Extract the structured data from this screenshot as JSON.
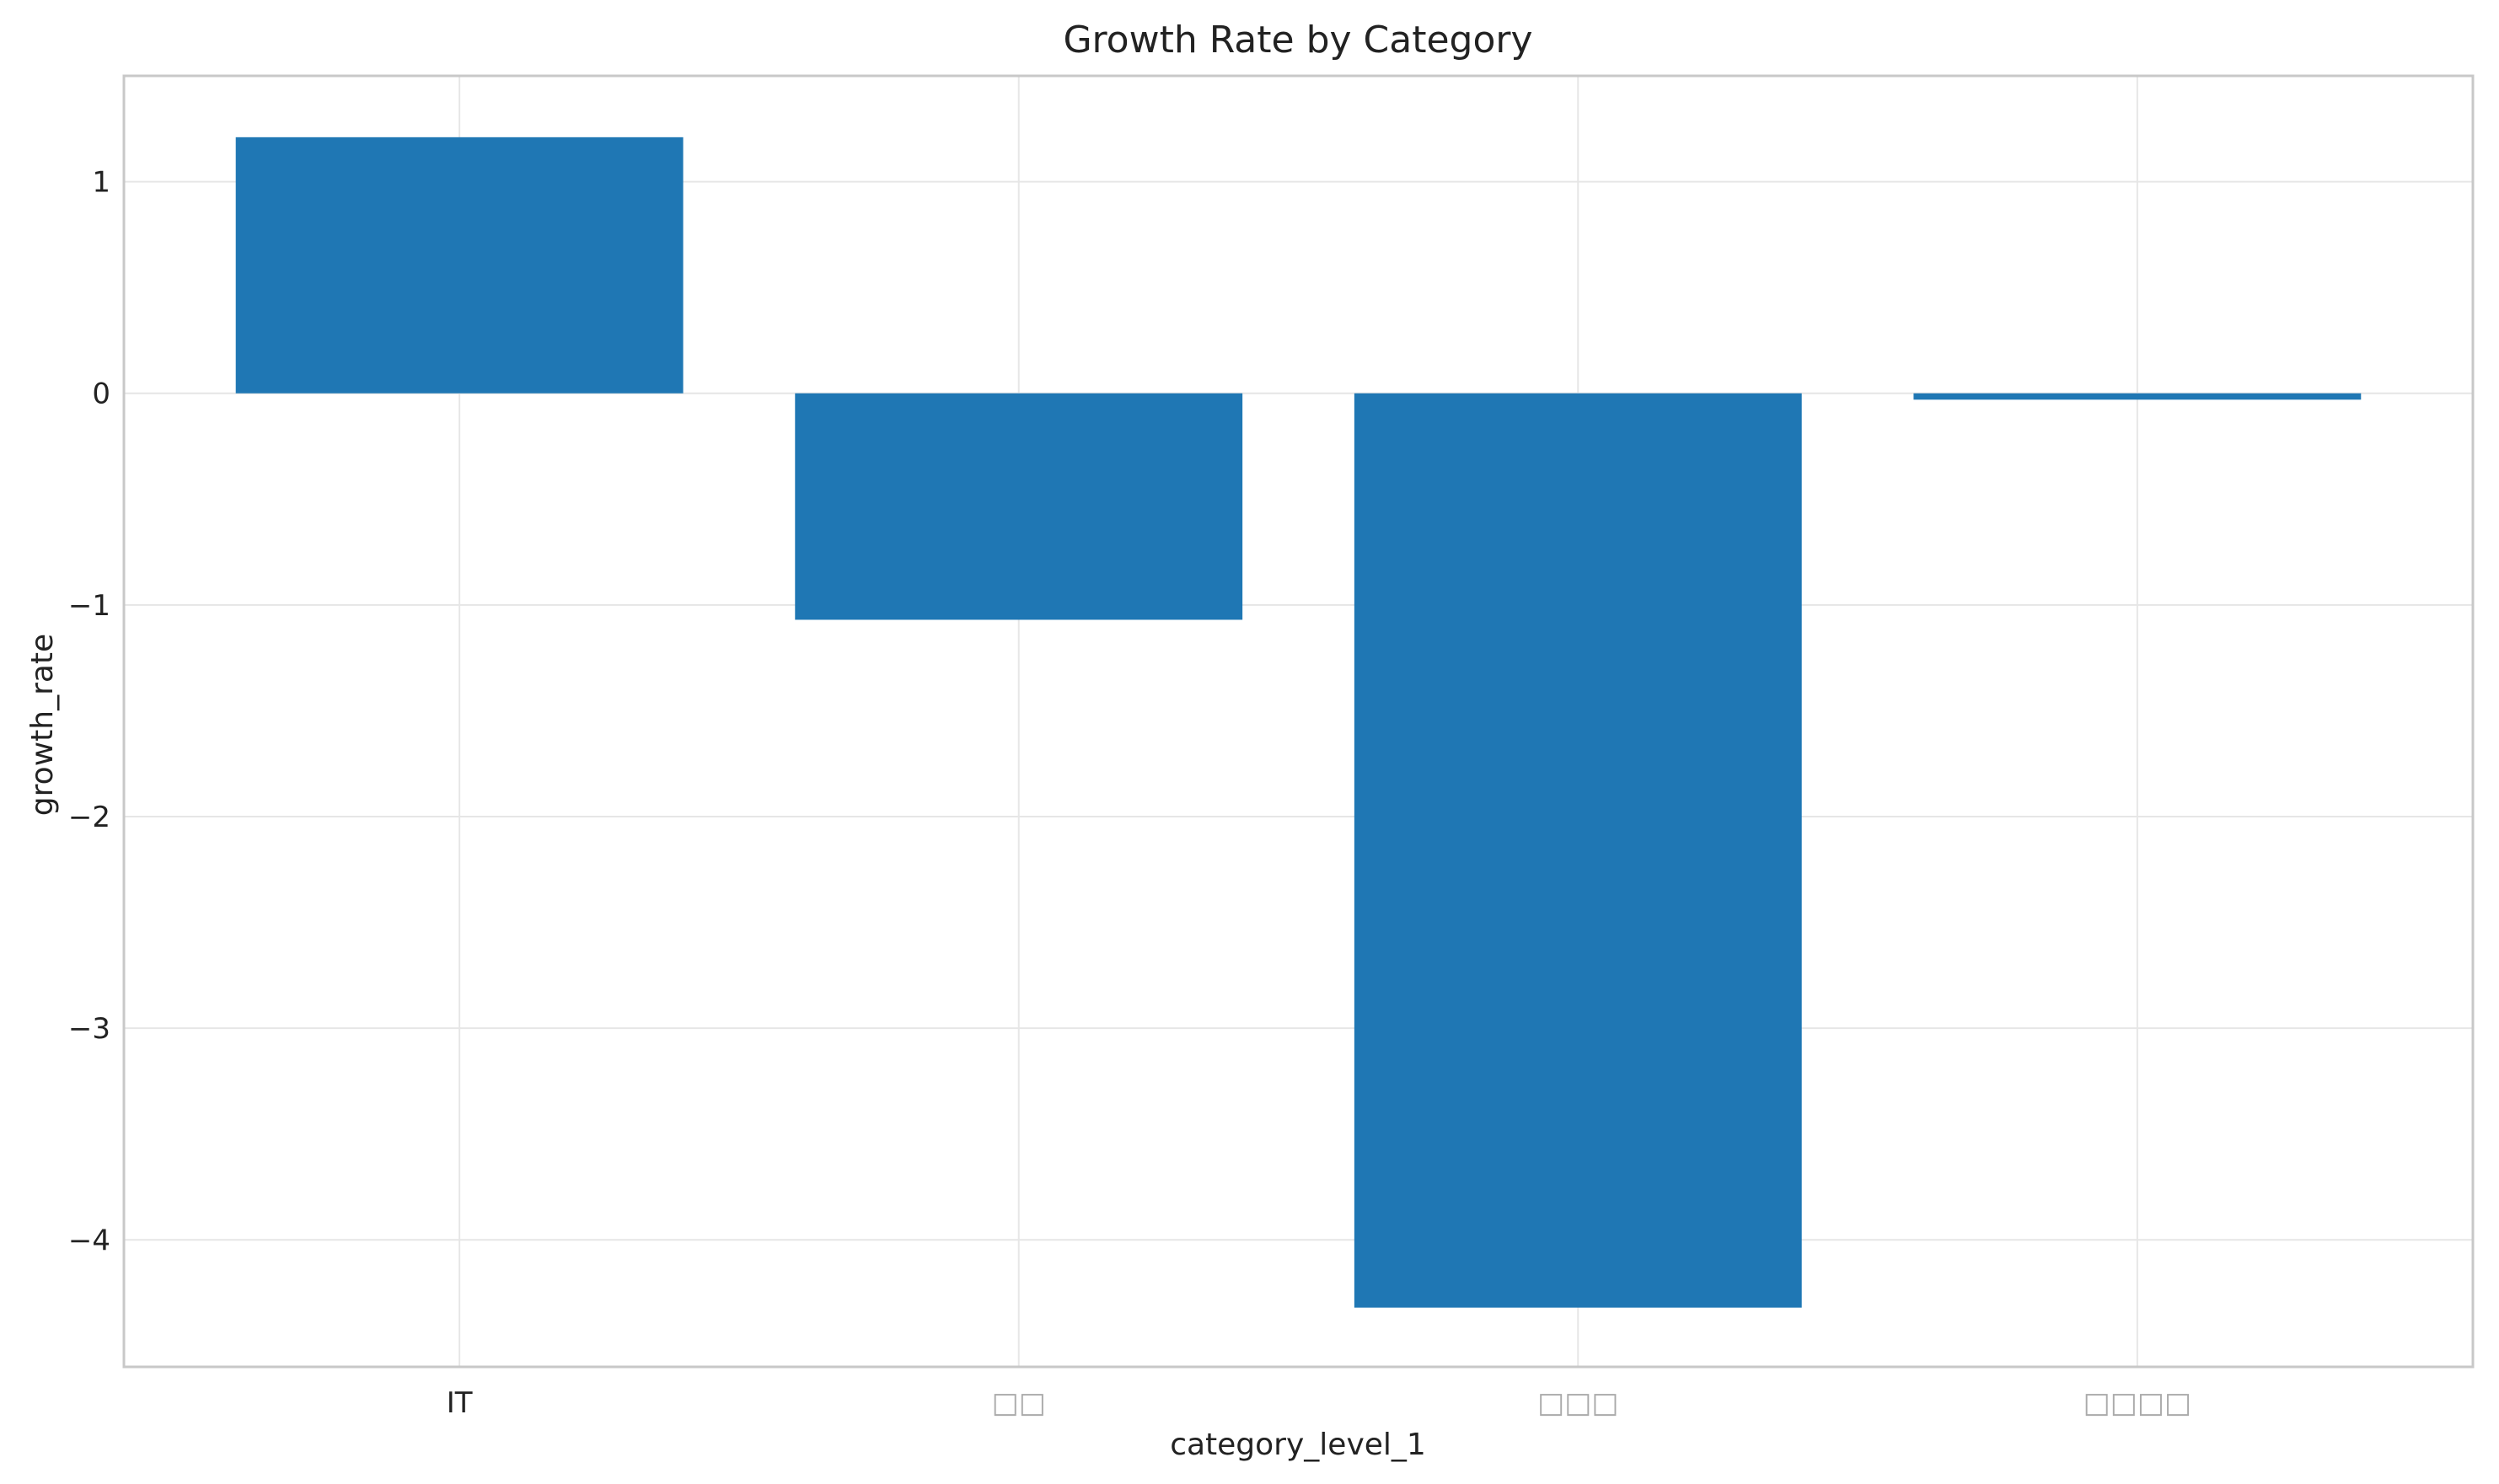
{
  "chart_data": {
    "type": "bar",
    "title": "Growth Rate by Category",
    "xlabel": "category_level_1",
    "ylabel": "growth_rate",
    "categories": [
      "IT",
      "□□",
      "□□□",
      "□□□□"
    ],
    "values": [
      1.21,
      -1.07,
      -4.32,
      -0.03
    ],
    "ylim": [
      -4.6,
      1.5
    ],
    "yticks": [
      1,
      0,
      -1,
      -2,
      -3,
      -4
    ],
    "ytick_labels": [
      "1",
      "0",
      "−1",
      "−2",
      "−3",
      "−4"
    ],
    "grid": true,
    "bar_color": "#1f77b4",
    "legend": "none"
  }
}
